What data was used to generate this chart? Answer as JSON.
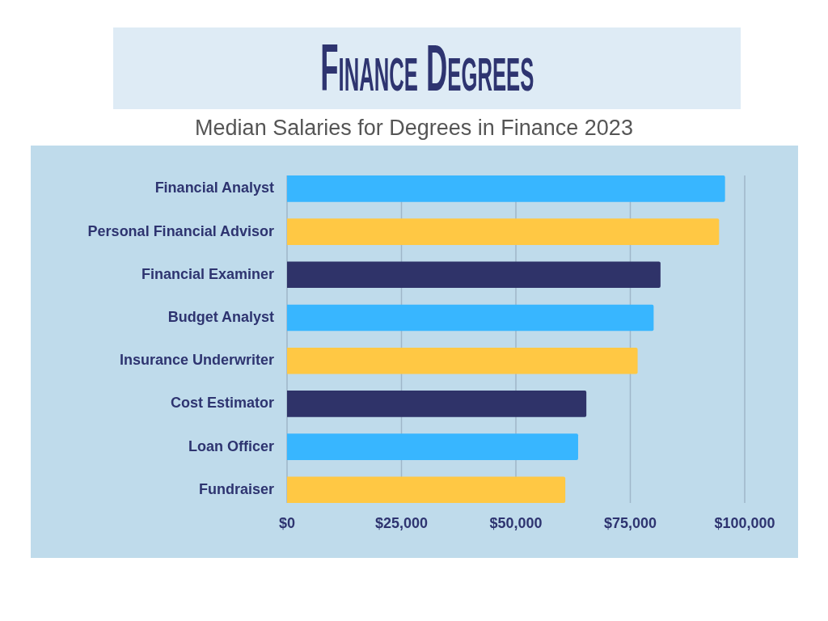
{
  "chart_data": {
    "type": "bar",
    "orientation": "horizontal",
    "title": "Finance Degrees",
    "subtitle": "Median Salaries for Degrees in Finance 2023",
    "categories": [
      "Financial Analyst",
      "Personal Financial Advisor",
      "Financial Examiner",
      "Budget Analyst",
      "Insurance Underwriter",
      "Cost Estimator",
      "Loan Officer",
      "Fundraiser"
    ],
    "values": [
      95700,
      94400,
      81600,
      80100,
      76600,
      65400,
      63600,
      60800
    ],
    "colors": [
      "#38b6ff",
      "#ffc844",
      "#2f3369",
      "#38b6ff",
      "#ffc844",
      "#2f3369",
      "#38b6ff",
      "#ffc844"
    ],
    "xlim": [
      0,
      100000
    ],
    "xticks": [
      {
        "value": 0,
        "label": "$0"
      },
      {
        "value": 25000,
        "label": "$25,000"
      },
      {
        "value": 50000,
        "label": "$50,000"
      },
      {
        "value": 75000,
        "label": "$75,000"
      },
      {
        "value": 100000,
        "label": "$100,000"
      }
    ],
    "grid": "x"
  }
}
